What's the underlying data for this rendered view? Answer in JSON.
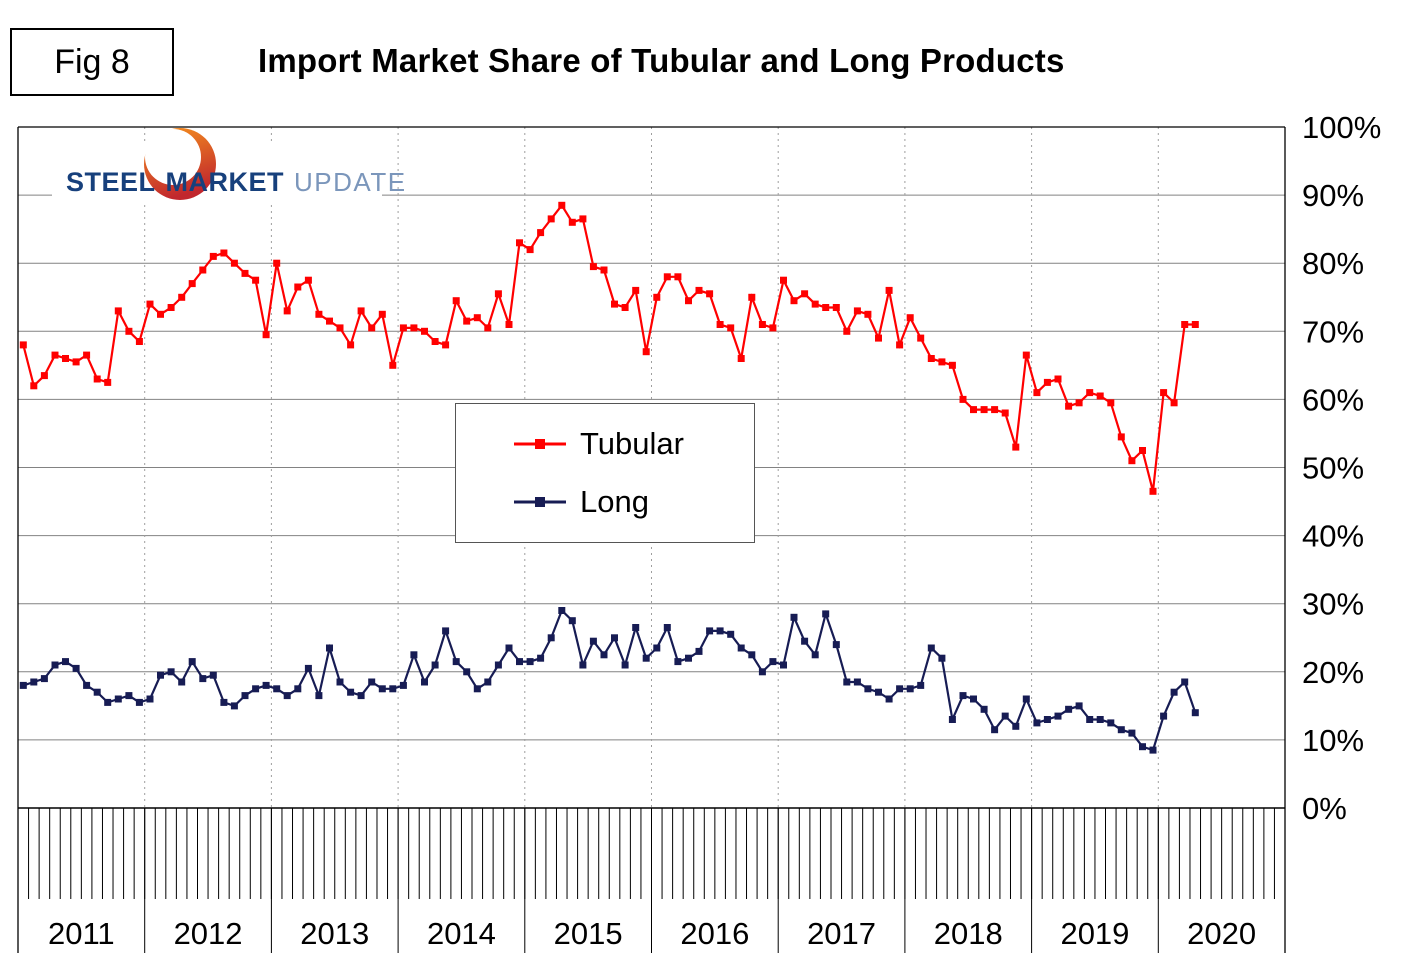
{
  "figure": {
    "fig_label": "Fig 8",
    "title": "Import Market Share of Tubular and Long Products"
  },
  "logo": {
    "word1": "STEEL",
    "word2": "MARKET",
    "word3": "UPDATE",
    "orb_color_top": "#f7941d",
    "orb_color_bottom": "#c1272d"
  },
  "chart_data": {
    "type": "line",
    "title": "Import Market Share of Tubular and Long Products",
    "x_unit": "month",
    "x_start": "2011-01",
    "x_end": "2020-04",
    "x_axis_years": [
      "2011",
      "2012",
      "2013",
      "2014",
      "2015",
      "2016",
      "2017",
      "2018",
      "2019",
      "2020"
    ],
    "y_tick_labels": [
      "0%",
      "10%",
      "20%",
      "30%",
      "40%",
      "50%",
      "60%",
      "70%",
      "80%",
      "90%",
      "100%"
    ],
    "ylim": [
      0,
      100
    ],
    "grid": true,
    "vertical_year_gridlines": "dashed",
    "legend_position": "center",
    "series": [
      {
        "name": "Tubular",
        "color": "#ff0000",
        "marker": "square",
        "values": [
          68,
          62,
          63.5,
          66.5,
          66,
          65.5,
          66.5,
          63,
          62.5,
          73,
          70,
          68.5,
          74,
          72.5,
          73.5,
          75,
          77,
          79,
          81,
          81.5,
          80,
          78.5,
          77.5,
          69.5,
          80,
          73,
          76.5,
          77.5,
          72.5,
          71.5,
          70.5,
          68,
          73,
          70.5,
          72.5,
          65,
          70.5,
          70.5,
          70,
          68.5,
          68,
          74.5,
          71.5,
          72,
          70.5,
          75.5,
          71,
          83,
          82,
          84.5,
          86.5,
          88.5,
          86,
          86.5,
          79.5,
          79,
          74,
          73.5,
          76,
          67,
          75,
          78,
          78,
          74.5,
          76,
          75.5,
          71,
          70.5,
          66,
          75,
          71,
          70.5,
          77.5,
          74.5,
          75.5,
          74,
          73.5,
          73.5,
          70,
          73,
          72.5,
          69,
          76,
          68,
          72,
          69,
          66,
          65.5,
          65,
          60,
          58.5,
          58.5,
          58.5,
          58,
          53,
          66.5,
          61,
          62.5,
          63,
          59,
          59.5,
          61,
          60.5,
          59.5,
          54.5,
          51,
          52.5,
          46.5,
          61,
          59.5,
          71,
          71
        ]
      },
      {
        "name": "Long",
        "color": "#171c54",
        "marker": "square",
        "values": [
          18,
          18.5,
          19,
          21,
          21.5,
          20.5,
          18,
          17,
          15.5,
          16,
          16.5,
          15.5,
          16,
          19.5,
          20,
          18.5,
          21.5,
          19,
          19.5,
          15.5,
          15,
          16.5,
          17.5,
          18,
          17.5,
          16.5,
          17.5,
          20.5,
          16.5,
          23.5,
          18.5,
          17,
          16.5,
          18.5,
          17.5,
          17.5,
          18,
          22.5,
          18.5,
          21,
          26,
          21.5,
          20,
          17.5,
          18.5,
          21,
          23.5,
          21.5,
          21.5,
          22,
          25,
          29,
          27.5,
          21,
          24.5,
          22.5,
          25,
          21,
          26.5,
          22,
          23.5,
          26.5,
          21.5,
          22,
          23,
          26,
          26,
          25.5,
          23.5,
          22.5,
          20,
          21.5,
          21,
          28,
          24.5,
          22.5,
          28.5,
          24,
          18.5,
          18.5,
          17.5,
          17,
          16,
          17.5,
          17.5,
          18,
          23.5,
          22,
          13,
          16.5,
          16,
          14.5,
          11.5,
          13.5,
          12,
          16,
          12.5,
          13,
          13.5,
          14.5,
          15,
          13,
          13,
          12.5,
          11.5,
          11,
          9,
          8.5,
          13.5,
          17,
          18.5,
          14
        ]
      }
    ]
  }
}
